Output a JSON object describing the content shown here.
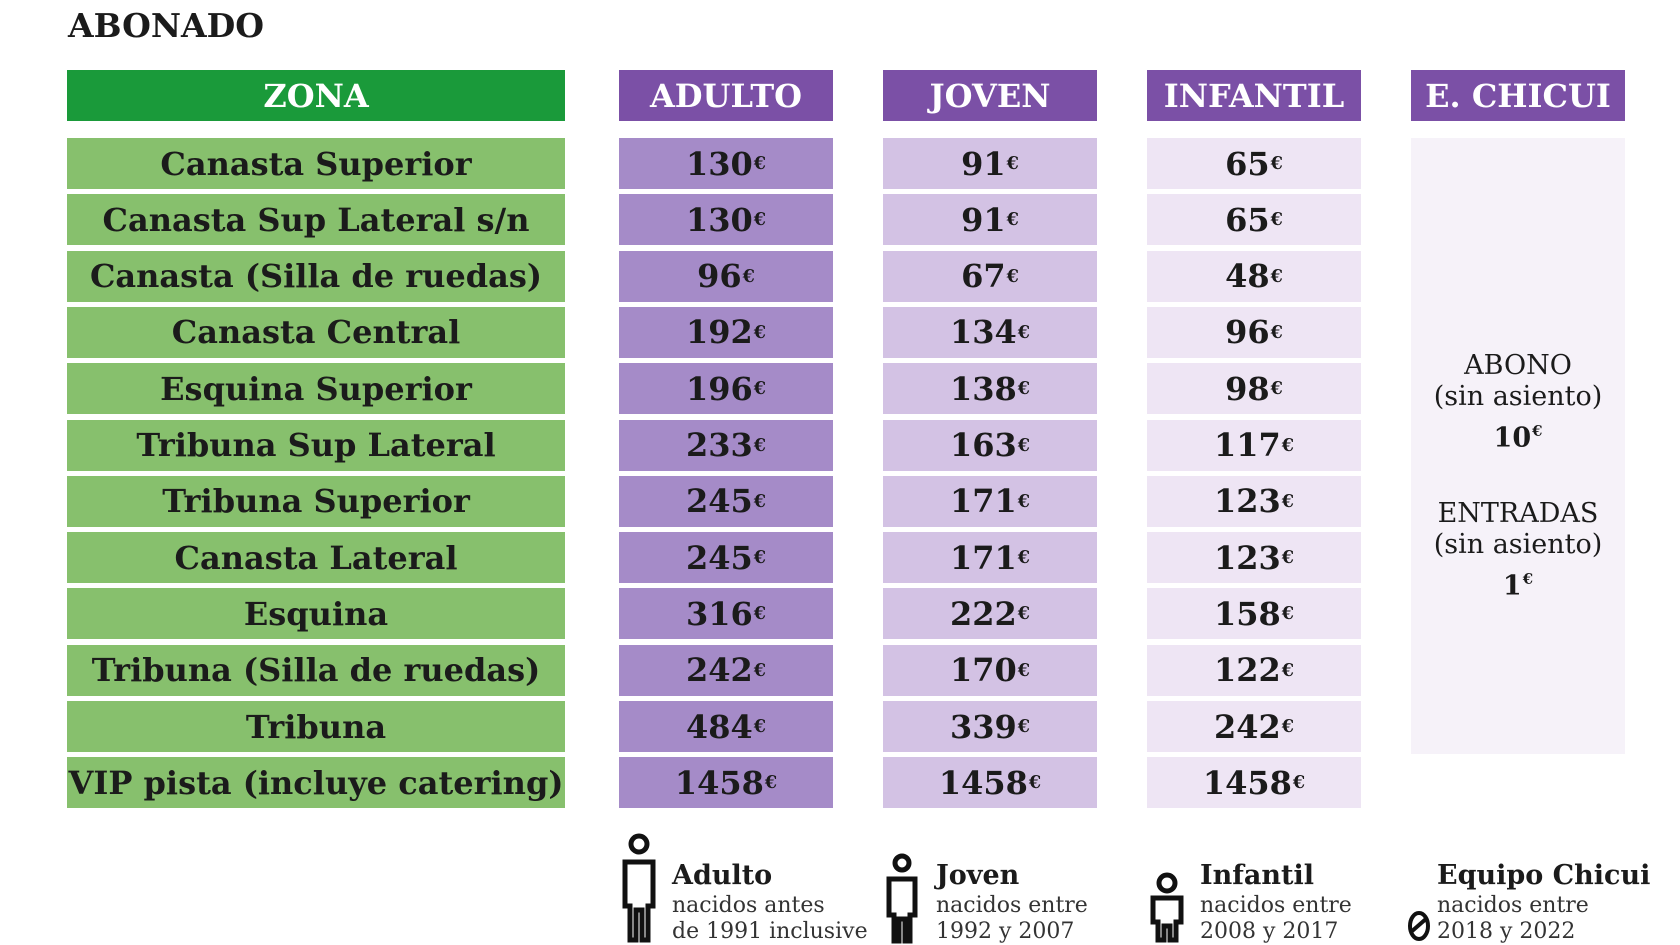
{
  "title": "ABONADO",
  "table": {
    "columns": [
      "ZONA",
      "ADULTO",
      "JOVEN",
      "INFANTIL",
      "E. CHICUI"
    ],
    "rows": [
      [
        "Canasta Superior",
        "130€",
        "91€",
        "65€"
      ],
      [
        "Canasta Sup Lateral s/n",
        "130€",
        "91€",
        "65€"
      ],
      [
        "Canasta (Silla de ruedas)",
        "96€",
        "67€",
        "48€"
      ],
      [
        "Canasta Central",
        "192€",
        "134€",
        "96€"
      ],
      [
        "Esquina Superior",
        "196€",
        "138€",
        "98€"
      ],
      [
        "Tribuna Sup Lateral",
        "233€",
        "163€",
        "117€"
      ],
      [
        "Tribuna Superior",
        "245€",
        "171€",
        "123€"
      ],
      [
        "Canasta Lateral",
        "245€",
        "171€",
        "123€"
      ],
      [
        "Esquina",
        "316€",
        "222€",
        "158€"
      ],
      [
        "Tribuna (Silla de ruedas)",
        "242€",
        "170€",
        "122€"
      ],
      [
        "Tribuna",
        "484€",
        "339€",
        "242€"
      ],
      [
        "VIP pista (incluye catering)",
        "1458€",
        "1458€",
        "1458€"
      ]
    ]
  },
  "chicui": [
    {
      "label": "ABONO",
      "note": "(sin asiento)",
      "price": "10€"
    },
    {
      "label": "ENTRADAS",
      "note": "(sin asiento)",
      "price": "1€"
    }
  ],
  "legend": [
    {
      "title": "Adulto",
      "lines": [
        "nacidos antes",
        "de 1991 inclusive"
      ]
    },
    {
      "title": "Joven",
      "lines": [
        "nacidos entre",
        "1992 y 2007"
      ]
    },
    {
      "title": "Infantil",
      "lines": [
        "nacidos entre",
        "2008 y 2017"
      ]
    },
    {
      "title": "Equipo Chicui",
      "lines": [
        "nacidos entre",
        "2018 y 2022"
      ]
    }
  ]
}
